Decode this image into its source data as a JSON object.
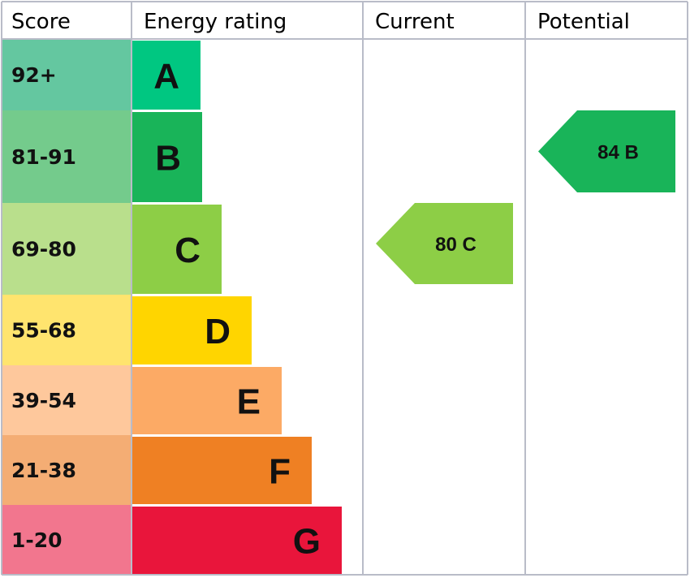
{
  "chart_data": {
    "type": "table",
    "headers": {
      "score": "Score",
      "rating": "Energy rating",
      "current": "Current",
      "potential": "Potential"
    },
    "bands": [
      {
        "range": "92+",
        "letter": "A",
        "color": "#00c781",
        "score_bg": "#64c7a0"
      },
      {
        "range": "81-91",
        "letter": "B",
        "color": "#19b459",
        "score_bg": "#74cb8c"
      },
      {
        "range": "69-80",
        "letter": "C",
        "color": "#8dce46",
        "score_bg": "#b9df8c"
      },
      {
        "range": "55-68",
        "letter": "D",
        "color": "#ffd500",
        "score_bg": "#ffe46e"
      },
      {
        "range": "39-54",
        "letter": "E",
        "color": "#fcaa65",
        "score_bg": "#fec89c"
      },
      {
        "range": "21-38",
        "letter": "F",
        "color": "#ef8023",
        "score_bg": "#f4ad74"
      },
      {
        "range": "1-20",
        "letter": "G",
        "color": "#e9153b",
        "score_bg": "#f2768e"
      }
    ],
    "current": {
      "value": 80,
      "letter": "C",
      "label": "80 C",
      "color": "#8dce46"
    },
    "potential": {
      "value": 84,
      "letter": "B",
      "label": "84 B",
      "color": "#19b459"
    }
  }
}
